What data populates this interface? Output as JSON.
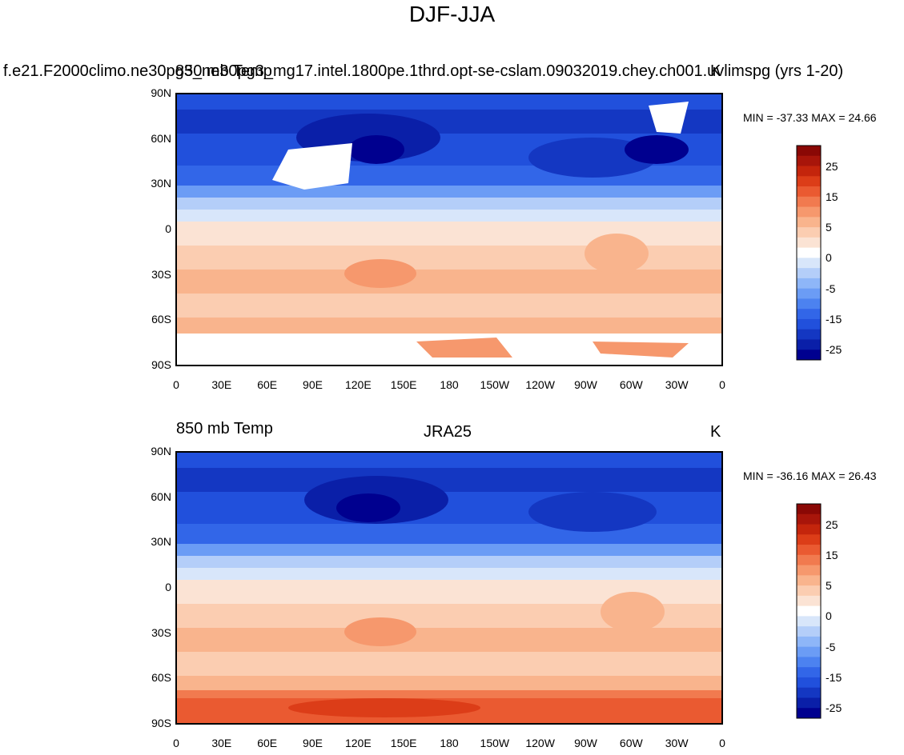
{
  "title": "DJF-JJA",
  "colorbar": {
    "colors": [
      "#00008f",
      "#0a1fa8",
      "#1437c2",
      "#2150dc",
      "#3266e8",
      "#4c82f0",
      "#6b9cf5",
      "#8eb6f8",
      "#b4cef9",
      "#d8e6fa",
      "#ffffff",
      "#fbe3d4",
      "#fbcdb1",
      "#f9b48d",
      "#f6986d",
      "#f17a4f",
      "#ea5a31",
      "#dc3d18",
      "#c4250c",
      "#a8150a",
      "#8a0805"
    ],
    "tick_labels": [
      "25",
      "15",
      "5",
      "0",
      "-5",
      "-15",
      "-25"
    ]
  },
  "axes": {
    "lat_labels": [
      "90N",
      "60N",
      "30N",
      "0",
      "30S",
      "60S",
      "90S"
    ],
    "lon_labels": [
      "0",
      "30E",
      "60E",
      "90E",
      "120E",
      "150E",
      "180",
      "150W",
      "120W",
      "90W",
      "60W",
      "30W",
      "0"
    ]
  },
  "panels": [
    {
      "left_label": "f.e21.F2000climo.ne30pg3_ne30pg3_mg17.intel.1800pe.1thrd.opt-se-cslam.09032019.chey.ch001.uvlimspg (yrs 1-20)",
      "overlay_label": "850 mb Temp",
      "center_label": "",
      "right_label": "K",
      "minmax": "MIN = -37.33 MAX =  24.66",
      "min": -37.33,
      "max": 24.66
    },
    {
      "left_label": "850 mb Temp",
      "center_label": "JRA25",
      "right_label": "K",
      "minmax": "MIN = -36.16 MAX =  26.43",
      "min": -36.16,
      "max": 26.43
    }
  ]
}
